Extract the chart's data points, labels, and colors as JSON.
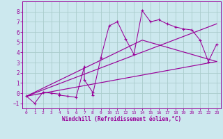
{
  "xlabel": "Windchill (Refroidissement éolien,°C)",
  "background_color": "#cce8ee",
  "grid_color": "#aacccc",
  "line_color": "#990099",
  "xlim": [
    -0.5,
    23.5
  ],
  "ylim": [
    -1.5,
    9.0
  ],
  "xticks": [
    0,
    1,
    2,
    3,
    4,
    5,
    6,
    7,
    8,
    9,
    10,
    11,
    12,
    13,
    14,
    15,
    16,
    17,
    18,
    19,
    20,
    21,
    22,
    23
  ],
  "yticks": [
    -1,
    0,
    1,
    2,
    3,
    4,
    5,
    6,
    7,
    8
  ],
  "scatter_x": [
    0,
    1,
    2,
    3,
    4,
    4,
    5,
    6,
    7,
    7,
    8,
    8,
    9,
    10,
    11,
    12,
    13,
    14,
    15,
    16,
    17,
    18,
    19,
    20,
    21,
    22,
    23
  ],
  "scatter_y": [
    -0.3,
    -1.0,
    0.1,
    0.0,
    -0.1,
    -0.2,
    -0.3,
    -0.4,
    2.6,
    1.3,
    0.1,
    -0.2,
    3.5,
    6.6,
    7.0,
    5.3,
    3.8,
    8.1,
    7.0,
    7.2,
    6.8,
    6.5,
    6.3,
    6.2,
    5.2,
    3.1,
    4.8
  ],
  "line1_x": [
    0,
    23
  ],
  "line1_y": [
    -0.3,
    3.1
  ],
  "line2_x": [
    0,
    23
  ],
  "line2_y": [
    -0.3,
    6.8
  ],
  "line3_x": [
    0,
    14,
    23
  ],
  "line3_y": [
    -0.3,
    5.2,
    3.1
  ]
}
